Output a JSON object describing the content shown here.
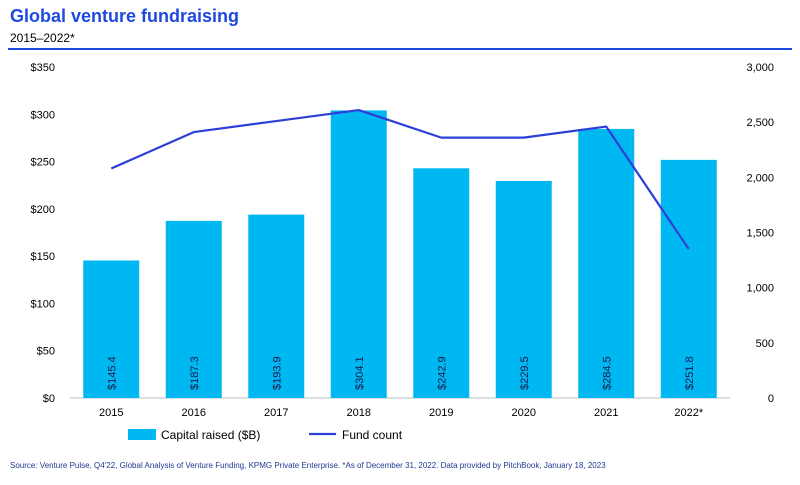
{
  "header": {
    "title": "Global venture fundraising",
    "subtitle": "2015–2022*"
  },
  "footnote": "Source: Venture Pulse, Q4'22, Global Analysis of Venture Funding, KPMG Private Enterprise. *As of December 31, 2022. Data provided by PitchBook, January 18, 2023",
  "colors": {
    "title": "#1e49e2",
    "rule": "#1e49e2",
    "bar": "#00b8f1",
    "line": "#2e3fd9"
  },
  "chart_data": {
    "type": "bar",
    "categories": [
      "2015",
      "2016",
      "2017",
      "2018",
      "2019",
      "2020",
      "2021",
      "2022*"
    ],
    "series": [
      {
        "name": "Capital raised ($B)",
        "type": "bar",
        "axis": "left",
        "values": [
          145.4,
          187.3,
          193.9,
          304.1,
          242.9,
          229.5,
          284.5,
          251.8
        ],
        "labels": [
          "$145.4",
          "$187.3",
          "$193.9",
          "$304.1",
          "$242.9",
          "$229.5",
          "$284.5",
          "$251.8"
        ]
      },
      {
        "name": "Fund count",
        "type": "line",
        "axis": "right",
        "values": [
          2080,
          2410,
          2510,
          2610,
          2360,
          2360,
          2460,
          1350
        ]
      }
    ],
    "y_left": {
      "ylim": [
        0,
        350
      ],
      "ticks": [
        0,
        50,
        100,
        150,
        200,
        250,
        300,
        350
      ],
      "tick_labels": [
        "$0",
        "$50",
        "$100",
        "$150",
        "$200",
        "$250",
        "$300",
        "$350"
      ]
    },
    "y_right": {
      "ylim": [
        0,
        3000
      ],
      "ticks": [
        0,
        500,
        1000,
        1500,
        2000,
        2500,
        3000
      ],
      "tick_labels": [
        "0",
        "500",
        "1,000",
        "1,500",
        "2,000",
        "2,500",
        "3,000"
      ]
    },
    "grid": false,
    "legend": "bottom"
  }
}
